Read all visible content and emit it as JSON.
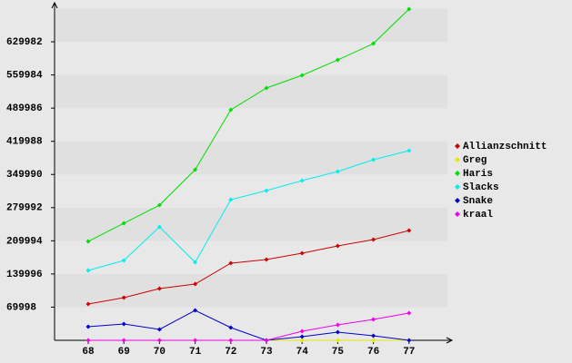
{
  "chart_data": {
    "type": "line",
    "categories": [
      "68",
      "69",
      "70",
      "71",
      "72",
      "73",
      "74",
      "75",
      "76",
      "77"
    ],
    "series": [
      {
        "name": "Allianzschnitt",
        "color": "#cc0000",
        "values": [
          76600,
          90000,
          109200,
          118700,
          162800,
          170400,
          183800,
          199200,
          212600,
          231700
        ]
      },
      {
        "name": "Greg",
        "color": "#e8e800",
        "values": [
          0,
          0,
          0,
          0,
          0,
          0,
          0,
          0,
          0,
          0
        ]
      },
      {
        "name": "Haris",
        "color": "#00dd00",
        "values": [
          208700,
          247000,
          285300,
          360000,
          486400,
          532400,
          559200,
          591700,
          626200,
          699000
        ]
      },
      {
        "name": "Slacks",
        "color": "#00eeee",
        "values": [
          147500,
          168500,
          239400,
          164700,
          296800,
          316000,
          337000,
          356200,
          381100,
          400200
        ]
      },
      {
        "name": "Snake",
        "color": "#0000cc",
        "values": [
          28700,
          34500,
          23000,
          63200,
          26800,
          0,
          7700,
          17200,
          9600,
          0
        ]
      },
      {
        "name": "kraal",
        "color": "#ee00ee",
        "values": [
          0,
          0,
          0,
          0,
          0,
          0,
          19200,
          32600,
          44000,
          57500
        ]
      }
    ],
    "ylim": [
      0,
      699980
    ],
    "yticks": [
      69998,
      139996,
      209994,
      279992,
      349990,
      419988,
      489986,
      559984,
      629982
    ],
    "grid": true
  }
}
